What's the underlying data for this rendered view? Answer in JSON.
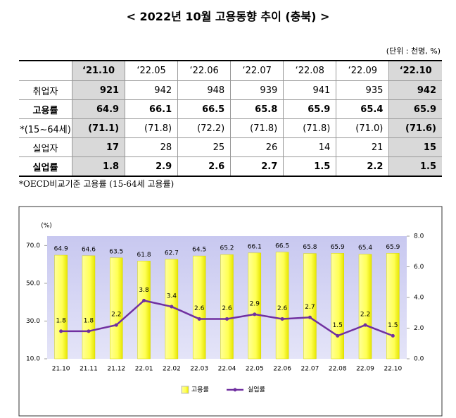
{
  "header": {
    "title": "< 2022년 10월 고용동향 추이 (충북) >",
    "unit": "(단위 : 천명, %)"
  },
  "table": {
    "columns": [
      "‘21.10",
      "‘22.05",
      "‘22.06",
      "‘22.07",
      "‘22.08",
      "‘22.09",
      "‘22.10"
    ],
    "rows": [
      {
        "label": "취업자",
        "cells": [
          921,
          942,
          948,
          939,
          941,
          935,
          942
        ]
      },
      {
        "label": "고용률",
        "cells": [
          64.9,
          66.1,
          66.5,
          65.8,
          65.9,
          65.4,
          65.9
        ]
      },
      {
        "label": "*(15~64세)",
        "cells": [
          "(71.1)",
          "(71.8)",
          "(72.2)",
          "(71.8)",
          "(71.8)",
          "(71.0)",
          "(71.6)"
        ]
      },
      {
        "label": "실업자",
        "cells": [
          17,
          28,
          25,
          26,
          14,
          21,
          15
        ]
      },
      {
        "label": "실업률",
        "cells": [
          1.8,
          2.9,
          2.6,
          2.7,
          1.5,
          2.2,
          1.5
        ]
      }
    ],
    "footnote": "*OECD비교기준 고용률 (15-64세 고용률)"
  },
  "chart_data": {
    "type": "bar",
    "y_label": "(%)",
    "categories": [
      "21.10",
      "21.11",
      "21.12",
      "22.01",
      "22.02",
      "22.03",
      "22.04",
      "22.05",
      "22.06",
      "22.07",
      "22.08",
      "22.09",
      "22.10"
    ],
    "series": [
      {
        "name": "고용률",
        "type": "bar",
        "color": "#ffff66",
        "values": [
          64.9,
          64.6,
          63.5,
          61.8,
          62.7,
          64.5,
          65.2,
          66.1,
          66.5,
          65.8,
          65.9,
          65.4,
          65.9
        ]
      },
      {
        "name": "실업률",
        "type": "line",
        "axis": "y2",
        "color": "#7030a0",
        "values": [
          1.8,
          1.8,
          2.2,
          3.8,
          3.4,
          2.6,
          2.6,
          2.9,
          2.6,
          2.7,
          1.5,
          2.2,
          1.5
        ]
      }
    ],
    "ylim": [
      10,
      75
    ],
    "yticks": [
      {
        "value": 10,
        "label": "10.0"
      },
      {
        "value": 30,
        "label": "30.0"
      },
      {
        "value": 50,
        "label": "50.0"
      },
      {
        "value": 70,
        "label": "70.0"
      }
    ],
    "y2lim": [
      0,
      8
    ],
    "y2ticks": [
      {
        "value": 0,
        "label": "0.0"
      },
      {
        "value": 2,
        "label": "2.0"
      },
      {
        "value": 4,
        "label": "4.0"
      },
      {
        "value": 6,
        "label": "6.0"
      },
      {
        "value": 8,
        "label": "8.0"
      }
    ]
  }
}
